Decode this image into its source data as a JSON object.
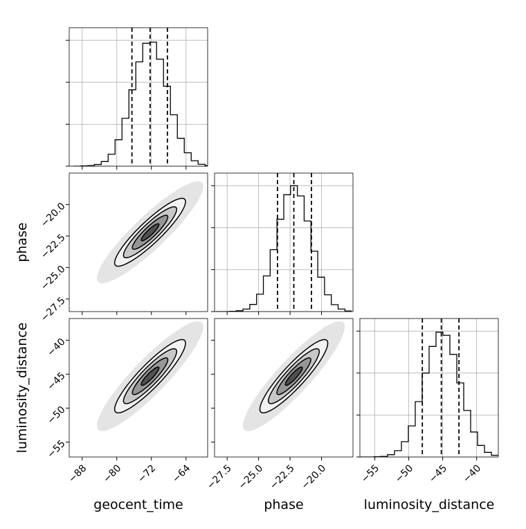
{
  "chart_data": {
    "type": "corner",
    "parameters": [
      {
        "name": "geocent_time",
        "lim": [
          -91,
          -59
        ],
        "ticks": [
          {
            "value": -88,
            "label": "−88"
          },
          {
            "value": -80,
            "label": "−80"
          },
          {
            "value": -72,
            "label": "−72"
          },
          {
            "value": -64,
            "label": "−64"
          }
        ]
      },
      {
        "name": "phase",
        "lim": [
          -28.5,
          -17.5
        ],
        "ticks": [
          {
            "value": -27.5,
            "label": "−27.5"
          },
          {
            "value": -25.0,
            "label": "−25.0"
          },
          {
            "value": -22.5,
            "label": "−22.5"
          },
          {
            "value": -20.0,
            "label": "−20.0"
          }
        ]
      },
      {
        "name": "luminosity_distance",
        "lim": [
          -57.2,
          -36.8
        ],
        "ticks": [
          {
            "value": -55,
            "label": "−55"
          },
          {
            "value": -50,
            "label": "−50"
          },
          {
            "value": -45,
            "label": "−45"
          },
          {
            "value": -40,
            "label": "−40"
          }
        ]
      }
    ],
    "hist_ylim": [
      0,
      660
    ],
    "hist_yticks": [
      0,
      200,
      400,
      600
    ],
    "grid": true,
    "color": "#000000",
    "histograms": [
      {
        "bins": [
          -90,
          -88.4,
          -86.8,
          -85.2,
          -83.6,
          -82,
          -80.4,
          -78.8,
          -77.2,
          -75.6,
          -74,
          -72.4,
          -70.8,
          -69.2,
          -67.6,
          -66,
          -64.4,
          -62.8,
          -61.2,
          -59.6,
          -58
        ],
        "counts": [
          0,
          1,
          3,
          8,
          22,
          57,
          126,
          228,
          364,
          497,
          586,
          591,
          510,
          381,
          245,
          133,
          64,
          26,
          9,
          3
        ],
        "quantiles": [
          -76.5,
          -72.3,
          -68.3
        ]
      },
      {
        "bins": [
          -28.4,
          -27.86,
          -27.32,
          -26.78,
          -26.24,
          -25.7,
          -25.16,
          -24.62,
          -24.08,
          -23.54,
          -23,
          -22.46,
          -21.92,
          -21.38,
          -20.84,
          -20.3,
          -19.76,
          -19.22,
          -18.68,
          -18.14,
          -17.6
        ],
        "counts": [
          0,
          0,
          1,
          4,
          12,
          34,
          83,
          170,
          295,
          440,
          557,
          600,
          551,
          432,
          288,
          164,
          80,
          33,
          12,
          3
        ],
        "quantiles": [
          -23.5,
          -22.2,
          -20.8
        ]
      },
      {
        "bins": [
          -57.2,
          -56.18,
          -55.16,
          -54.14,
          -53.12,
          -52.1,
          -51.08,
          -50.06,
          -49.04,
          -48.02,
          -47,
          -45.98,
          -44.96,
          -43.94,
          -42.92,
          -41.9,
          -40.88,
          -39.86,
          -38.84,
          -37.82,
          -36.8
        ],
        "counts": [
          0,
          0,
          1,
          3,
          11,
          30,
          73,
          148,
          264,
          400,
          527,
          595,
          580,
          489,
          353,
          222,
          119,
          55,
          22,
          8
        ],
        "quantiles": [
          -48.0,
          -45.2,
          -42.6
        ]
      }
    ],
    "pairs": [
      {
        "x": 0,
        "y": 1,
        "mean": [
          -72.3,
          -22.2
        ],
        "std": [
          4.1,
          1.35
        ],
        "corr": 0.9
      },
      {
        "x": 0,
        "y": 2,
        "mean": [
          -72.3,
          -45.3
        ],
        "std": [
          4.1,
          2.7
        ],
        "corr": 0.9
      },
      {
        "x": 1,
        "y": 2,
        "mean": [
          -22.2,
          -45.3
        ],
        "std": [
          1.35,
          2.7
        ],
        "corr": 0.9
      }
    ],
    "levels": [
      2,
      1.5,
      1,
      0.5
    ],
    "level_colors": [
      "#f2f2f2",
      "#c8c8c8",
      "#969696",
      "#505050"
    ],
    "cloud_level": 3,
    "cloud_color": "#dddddd"
  }
}
